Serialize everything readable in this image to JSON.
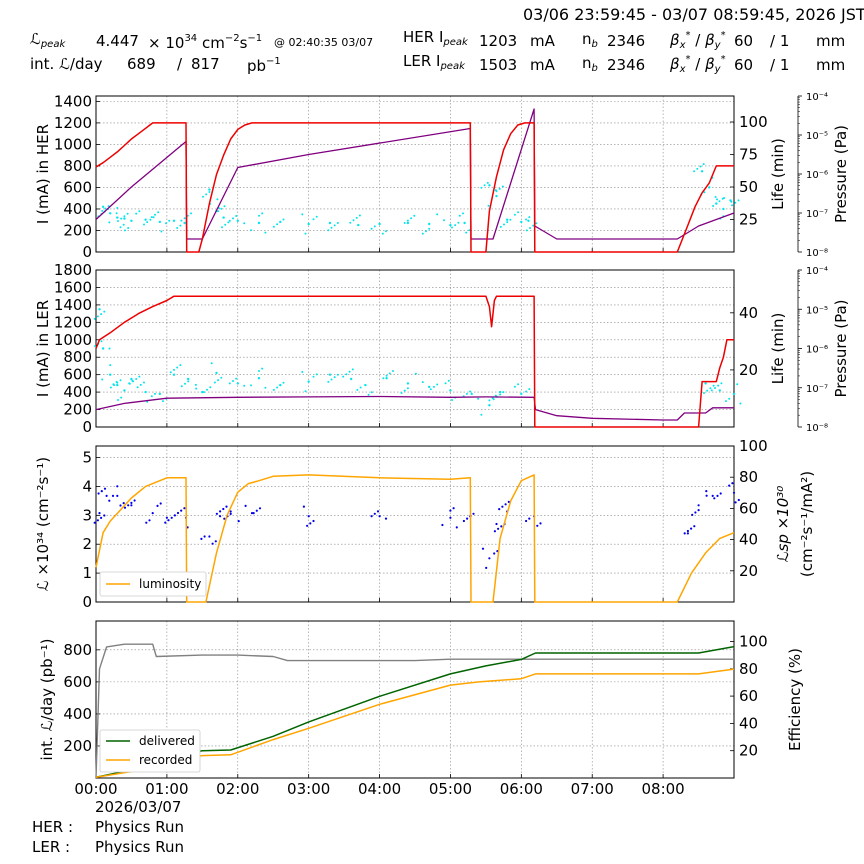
{
  "header": {
    "time_range": "03/06 23:59:45 - 03/07 08:59:45, 2026 JST",
    "lpeak_label": "ℒ",
    "lpeak_sub": "peak",
    "lpeak_value": "4.447",
    "lpeak_times": "× 10",
    "lpeak_exp": "34",
    "lpeak_unit": "cm",
    "lpeak_unit_exp1": "−2",
    "lpeak_unit_s": "s",
    "lpeak_unit_exp2": "−1",
    "lpeak_at": "@ 02:40:35 03/07",
    "intl_label": "int. ℒ/day",
    "intl_value1": "689",
    "intl_sep": "/",
    "intl_value2": "817",
    "intl_unit": "pb",
    "intl_unit_exp": "−1",
    "her_label": "HER I",
    "her_sub": "peak",
    "her_value": "1203",
    "her_unit": "mA",
    "nb_label": "n",
    "nb_sub": "b",
    "her_nb": "2346",
    "beta_label": "β",
    "beta_x": "x",
    "beta_y": "y",
    "beta_star": "*",
    "beta_sep": " / ",
    "her_beta_x": "60",
    "her_beta_y": "/ 1",
    "beta_unit": "mm",
    "ler_label": "LER I",
    "ler_sub": "peak",
    "ler_value": "1503",
    "ler_unit": "mA",
    "ler_nb": "2346",
    "ler_beta_x": "60",
    "ler_beta_y": "/ 1"
  },
  "footer": {
    "date": "2026/03/07",
    "her_label": "HER :",
    "her_mode": "Physics Run",
    "ler_label": "LER :",
    "ler_mode": "Physics Run"
  },
  "colors": {
    "current": "#ee0000",
    "lifetime": "#00e5ee",
    "pressure": "#800080",
    "luminosity": "#ffa500",
    "specific_lum": "#0000ee",
    "delivered": "#006400",
    "recorded": "#ffa500",
    "efficiency": "#808080",
    "grid": "#888888"
  },
  "chart_data": [
    {
      "type": "line",
      "panel": "her",
      "x_unit": "hours since 00:00 03/07",
      "xlim": [
        0,
        9
      ],
      "x_ticks": [
        "00:00",
        "01:00",
        "02:00",
        "03:00",
        "04:00",
        "05:00",
        "06:00",
        "07:00",
        "08:00"
      ],
      "ylabel": "I (mA) in HER",
      "ylim": [
        0,
        1450
      ],
      "y_ticks": [
        0,
        200,
        400,
        600,
        800,
        1000,
        1200,
        1400
      ],
      "y2label": "Life (min)",
      "y2lim": [
        0,
        120
      ],
      "y2_ticks": [
        25,
        50,
        75,
        100
      ],
      "y3label": "Pressure (Pa)",
      "y3_ticks": [
        "10⁻⁸",
        "10⁻⁷",
        "10⁻⁶",
        "10⁻⁵",
        "10⁻⁴"
      ],
      "current": [
        [
          0,
          790
        ],
        [
          0.1,
          830
        ],
        [
          0.2,
          880
        ],
        [
          0.3,
          930
        ],
        [
          0.4,
          990
        ],
        [
          0.5,
          1050
        ],
        [
          0.6,
          1100
        ],
        [
          0.7,
          1150
        ],
        [
          0.8,
          1200
        ],
        [
          1.27,
          1200
        ],
        [
          1.28,
          0
        ],
        [
          1.45,
          0
        ],
        [
          1.5,
          120
        ],
        [
          1.6,
          450
        ],
        [
          1.7,
          720
        ],
        [
          1.8,
          900
        ],
        [
          1.9,
          1050
        ],
        [
          2.0,
          1140
        ],
        [
          2.1,
          1180
        ],
        [
          2.2,
          1200
        ],
        [
          5.28,
          1200
        ],
        [
          5.29,
          0
        ],
        [
          5.5,
          0
        ],
        [
          5.55,
          380
        ],
        [
          5.65,
          700
        ],
        [
          5.75,
          950
        ],
        [
          5.85,
          1100
        ],
        [
          5.95,
          1180
        ],
        [
          6.05,
          1200
        ],
        [
          6.18,
          1200
        ],
        [
          6.19,
          0
        ],
        [
          8.2,
          0
        ],
        [
          8.35,
          250
        ],
        [
          8.45,
          420
        ],
        [
          8.55,
          550
        ],
        [
          8.65,
          640
        ],
        [
          8.75,
          800
        ],
        [
          9.0,
          800
        ]
      ],
      "pressure_lifetime_line": [
        [
          0,
          25
        ],
        [
          0.5,
          50
        ],
        [
          1.27,
          85
        ],
        [
          1.28,
          10
        ],
        [
          1.5,
          10
        ],
        [
          2.0,
          65
        ],
        [
          3.0,
          75
        ],
        [
          5.28,
          95
        ],
        [
          5.29,
          10
        ],
        [
          5.6,
          10
        ],
        [
          6.18,
          110
        ],
        [
          6.19,
          20
        ],
        [
          6.5,
          10
        ],
        [
          8.2,
          10
        ],
        [
          8.5,
          20
        ],
        [
          9.0,
          30
        ]
      ],
      "lifetime": [
        [
          0.1,
          420
        ],
        [
          0.2,
          360
        ],
        [
          0.3,
          320
        ],
        [
          0.4,
          310
        ],
        [
          0.5,
          290
        ],
        [
          0.7,
          300
        ],
        [
          0.9,
          280
        ],
        [
          1.1,
          290
        ],
        [
          1.25,
          270
        ],
        [
          1.6,
          580
        ],
        [
          1.7,
          380
        ],
        [
          1.8,
          320
        ],
        [
          2.0,
          290
        ],
        [
          2.3,
          270
        ],
        [
          2.6,
          280
        ],
        [
          3.0,
          260
        ],
        [
          3.3,
          270
        ],
        [
          3.7,
          250
        ],
        [
          4.0,
          260
        ],
        [
          4.4,
          270
        ],
        [
          4.7,
          260
        ],
        [
          5.0,
          250
        ],
        [
          5.2,
          270
        ],
        [
          5.55,
          620
        ],
        [
          5.65,
          520
        ],
        [
          5.8,
          300
        ],
        [
          6.0,
          280
        ],
        [
          6.1,
          290
        ],
        [
          8.55,
          750
        ],
        [
          8.65,
          600
        ],
        [
          8.75,
          450
        ],
        [
          8.85,
          400
        ],
        [
          8.95,
          480
        ]
      ],
      "lifetime_unit": "mA-scale"
    },
    {
      "type": "line",
      "panel": "ler",
      "xlim": [
        0,
        9
      ],
      "ylabel": "I (mA) in LER",
      "ylim": [
        0,
        1800
      ],
      "y_ticks": [
        0,
        200,
        400,
        600,
        800,
        1000,
        1200,
        1400,
        1600,
        1800
      ],
      "y2label": "Life (min)",
      "y2_ticks": [
        20,
        40
      ],
      "y3label": "Pressure (Pa)",
      "y3_ticks": [
        "10⁻⁸",
        "10⁻⁷",
        "10⁻⁶",
        "10⁻⁵",
        "10⁻⁴"
      ],
      "current": [
        [
          0,
          900
        ],
        [
          0.05,
          1000
        ],
        [
          0.2,
          1080
        ],
        [
          0.4,
          1200
        ],
        [
          0.6,
          1300
        ],
        [
          0.8,
          1380
        ],
        [
          1.0,
          1450
        ],
        [
          1.1,
          1500
        ],
        [
          5.5,
          1500
        ],
        [
          5.55,
          1380
        ],
        [
          5.58,
          1150
        ],
        [
          5.62,
          1450
        ],
        [
          5.65,
          1500
        ],
        [
          6.18,
          1500
        ],
        [
          6.19,
          0
        ],
        [
          8.5,
          0
        ],
        [
          8.55,
          520
        ],
        [
          8.75,
          520
        ],
        [
          8.8,
          680
        ],
        [
          8.85,
          800
        ],
        [
          8.9,
          1000
        ],
        [
          9.0,
          1000
        ]
      ],
      "pressure_line": [
        [
          0,
          200
        ],
        [
          0.4,
          270
        ],
        [
          1.0,
          330
        ],
        [
          2.0,
          340
        ],
        [
          3.0,
          345
        ],
        [
          4.0,
          350
        ],
        [
          5.0,
          340
        ],
        [
          5.5,
          345
        ],
        [
          6.18,
          340
        ],
        [
          6.2,
          200
        ],
        [
          6.5,
          130
        ],
        [
          7.0,
          100
        ],
        [
          8.0,
          80
        ],
        [
          8.2,
          80
        ],
        [
          8.3,
          160
        ],
        [
          8.6,
          160
        ],
        [
          8.7,
          220
        ],
        [
          9.0,
          220
        ]
      ],
      "lifetime": [
        [
          0.05,
          1350
        ],
        [
          0.1,
          900
        ],
        [
          0.2,
          600
        ],
        [
          0.3,
          480
        ],
        [
          0.4,
          420
        ],
        [
          0.5,
          550
        ],
        [
          0.7,
          400
        ],
        [
          0.9,
          380
        ],
        [
          1.1,
          600
        ],
        [
          1.3,
          550
        ],
        [
          1.5,
          400
        ],
        [
          1.7,
          620
        ],
        [
          2.0,
          500
        ],
        [
          2.3,
          560
        ],
        [
          2.6,
          480
        ],
        [
          3.0,
          520
        ],
        [
          3.3,
          600
        ],
        [
          3.6,
          550
        ],
        [
          3.8,
          480
        ],
        [
          4.1,
          560
        ],
        [
          4.4,
          500
        ],
        [
          4.7,
          460
        ],
        [
          5.0,
          420
        ],
        [
          5.3,
          380
        ],
        [
          5.55,
          250
        ],
        [
          5.7,
          400
        ],
        [
          6.0,
          380
        ],
        [
          8.6,
          500
        ],
        [
          8.8,
          420
        ],
        [
          9.0,
          380
        ]
      ]
    },
    {
      "type": "line",
      "panel": "luminosity",
      "xlim": [
        0,
        9
      ],
      "ylabel": "ℒ ×10³⁴ (cm⁻²s⁻¹)",
      "ylim": [
        0,
        5.4
      ],
      "y_ticks": [
        0,
        1,
        2,
        3,
        4,
        5
      ],
      "y2label_1": "ℒsp ×10³⁰",
      "y2label_2": "(cm⁻²s⁻¹/mA²)",
      "y2lim": [
        0,
        100
      ],
      "y2_ticks": [
        20,
        40,
        60,
        80,
        100
      ],
      "legend": "luminosity",
      "legend_loc": "lower left",
      "luminosity": [
        [
          0,
          1.2
        ],
        [
          0.1,
          2.4
        ],
        [
          0.2,
          2.8
        ],
        [
          0.35,
          3.2
        ],
        [
          0.5,
          3.6
        ],
        [
          0.7,
          4.0
        ],
        [
          0.9,
          4.2
        ],
        [
          1.0,
          4.3
        ],
        [
          1.27,
          4.3
        ],
        [
          1.28,
          0
        ],
        [
          1.55,
          0
        ],
        [
          1.7,
          1.7
        ],
        [
          1.85,
          3.0
        ],
        [
          2.0,
          3.8
        ],
        [
          2.15,
          4.1
        ],
        [
          2.3,
          4.2
        ],
        [
          2.5,
          4.35
        ],
        [
          3.0,
          4.4
        ],
        [
          4.0,
          4.3
        ],
        [
          5.0,
          4.25
        ],
        [
          5.28,
          4.3
        ],
        [
          5.29,
          0
        ],
        [
          5.6,
          0
        ],
        [
          5.7,
          2.2
        ],
        [
          5.85,
          3.5
        ],
        [
          6.0,
          4.2
        ],
        [
          6.18,
          4.4
        ],
        [
          6.19,
          0
        ],
        [
          8.2,
          0
        ],
        [
          8.4,
          1.0
        ],
        [
          8.6,
          1.7
        ],
        [
          8.8,
          2.2
        ],
        [
          9.0,
          2.4
        ]
      ],
      "specific_luminosity": [
        [
          0.05,
          57
        ],
        [
          0.15,
          68
        ],
        [
          0.3,
          68
        ],
        [
          0.5,
          62
        ],
        [
          0.8,
          57
        ],
        [
          1.0,
          54
        ],
        [
          1.27,
          54
        ],
        [
          1.6,
          42
        ],
        [
          1.75,
          55
        ],
        [
          1.9,
          58
        ],
        [
          2.2,
          57
        ],
        [
          3.0,
          55
        ],
        [
          4.0,
          55
        ],
        [
          5.0,
          54
        ],
        [
          5.28,
          55
        ],
        [
          5.55,
          28
        ],
        [
          5.65,
          50
        ],
        [
          5.8,
          58
        ],
        [
          6.18,
          55
        ],
        [
          8.35,
          44
        ],
        [
          8.5,
          62
        ],
        [
          8.7,
          68
        ],
        [
          9.0,
          70
        ]
      ]
    },
    {
      "type": "line",
      "panel": "integrated",
      "xlim": [
        0,
        9
      ],
      "x_ticks": [
        "00:00",
        "01:00",
        "02:00",
        "03:00",
        "04:00",
        "05:00",
        "06:00",
        "07:00",
        "08:00"
      ],
      "ylabel": "int. ℒ/day (pb⁻¹)",
      "ylim": [
        0,
        980
      ],
      "y_ticks": [
        200,
        400,
        600,
        800
      ],
      "y2label": "Efficiency (%)",
      "y2lim": [
        0,
        115
      ],
      "y2_ticks": [
        20,
        40,
        60,
        80,
        100
      ],
      "legend": [
        "delivered",
        "recorded"
      ],
      "legend_loc": "lower left",
      "delivered": [
        [
          0,
          5
        ],
        [
          0.5,
          50
        ],
        [
          1.0,
          130
        ],
        [
          1.5,
          170
        ],
        [
          1.9,
          175
        ],
        [
          2.5,
          260
        ],
        [
          3.0,
          350
        ],
        [
          4.0,
          510
        ],
        [
          5.0,
          650
        ],
        [
          5.5,
          700
        ],
        [
          6.0,
          740
        ],
        [
          6.2,
          780
        ],
        [
          8.5,
          780
        ],
        [
          9.0,
          820
        ]
      ],
      "recorded": [
        [
          0,
          5
        ],
        [
          0.5,
          40
        ],
        [
          1.0,
          110
        ],
        [
          1.5,
          140
        ],
        [
          1.9,
          145
        ],
        [
          2.5,
          240
        ],
        [
          3.0,
          310
        ],
        [
          4.0,
          460
        ],
        [
          5.0,
          580
        ],
        [
          5.4,
          600
        ],
        [
          6.0,
          620
        ],
        [
          6.2,
          650
        ],
        [
          8.5,
          650
        ],
        [
          9.0,
          680
        ]
      ],
      "efficiency": [
        [
          0,
          0
        ],
        [
          0.05,
          80
        ],
        [
          0.15,
          96
        ],
        [
          0.4,
          98
        ],
        [
          0.8,
          98
        ],
        [
          0.85,
          89
        ],
        [
          1.5,
          90
        ],
        [
          2.0,
          90
        ],
        [
          2.5,
          89
        ],
        [
          2.7,
          86
        ],
        [
          3.5,
          86
        ],
        [
          4.0,
          86
        ],
        [
          4.5,
          86
        ],
        [
          5.0,
          87
        ],
        [
          6.0,
          87
        ],
        [
          7.0,
          87
        ],
        [
          8.0,
          87
        ],
        [
          9.0,
          87
        ]
      ]
    }
  ]
}
